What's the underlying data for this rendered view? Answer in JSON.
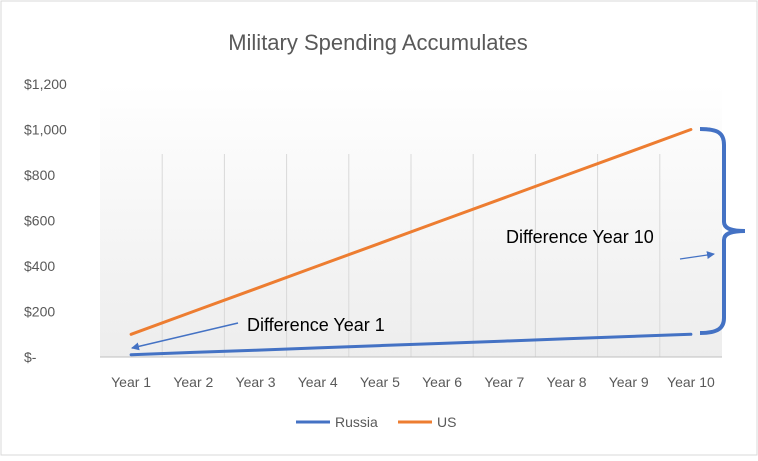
{
  "chart_data": {
    "type": "line",
    "title": "Military Spending  Accumulates",
    "xlabel": "",
    "ylabel": "",
    "categories": [
      "Year 1",
      "Year 2",
      "Year 3",
      "Year 4",
      "Year 5",
      "Year 6",
      "Year 7",
      "Year 8",
      "Year 9",
      "Year 10"
    ],
    "series": [
      {
        "name": "Russia",
        "color": "#4472C4",
        "values": [
          10,
          20,
          30,
          40,
          50,
          60,
          70,
          80,
          90,
          100
        ]
      },
      {
        "name": "US",
        "color": "#ED7D31",
        "values": [
          100,
          200,
          300,
          400,
          500,
          600,
          700,
          800,
          900,
          1000
        ]
      }
    ],
    "ylim": [
      0,
      1200
    ],
    "yticks": [
      0,
      200,
      400,
      600,
      800,
      1000,
      1200
    ],
    "ytick_labels": [
      "$-",
      "$200",
      "$400",
      "$600",
      "$800",
      "$1,000",
      "$1,200"
    ],
    "grid": "vertical",
    "legend_position": "bottom",
    "annotations": [
      {
        "text": "Difference Year 1",
        "color": "#4472C4"
      },
      {
        "text": "Difference Year 10",
        "color": "#4472C4"
      }
    ]
  }
}
